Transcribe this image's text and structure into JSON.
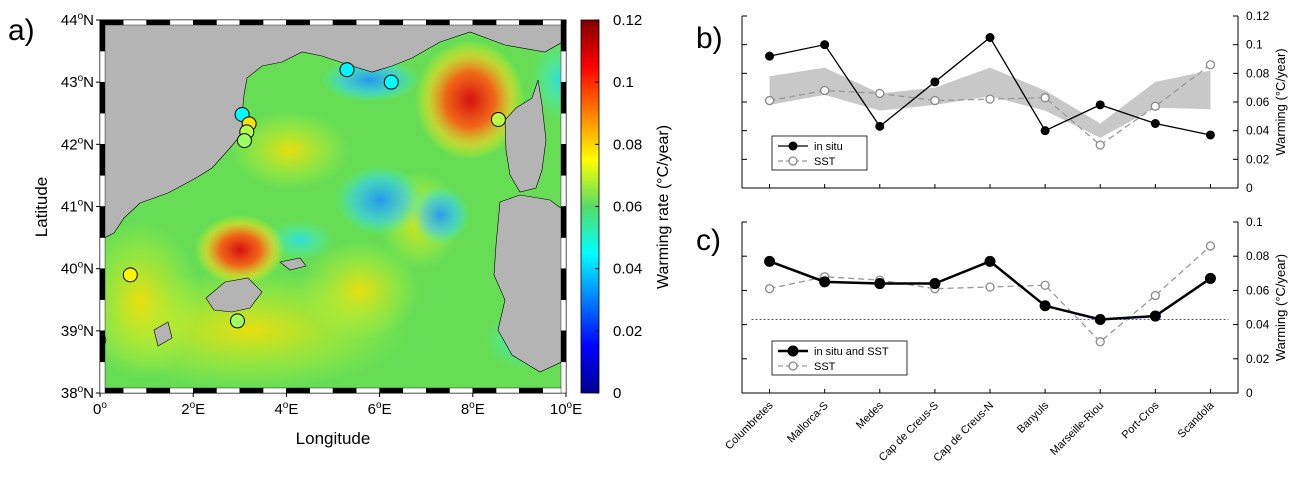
{
  "panel_labels": {
    "a": "a)",
    "b": "b)",
    "c": "c)"
  },
  "map": {
    "xlabel": "Longitude",
    "ylabel": "Latitude",
    "xticks": [
      {
        "v": 0,
        "t": "0",
        "sup": "o",
        "sfx": ""
      },
      {
        "v": 2,
        "t": "2",
        "sup": "o",
        "sfx": "E"
      },
      {
        "v": 4,
        "t": "4",
        "sup": "o",
        "sfx": "E"
      },
      {
        "v": 6,
        "t": "6",
        "sup": "o",
        "sfx": "E"
      },
      {
        "v": 8,
        "t": "8",
        "sup": "o",
        "sfx": "E"
      },
      {
        "v": 10,
        "t": "10",
        "sup": "o",
        "sfx": "E"
      }
    ],
    "yticks": [
      {
        "v": 44,
        "t": "44",
        "sup": "o",
        "sfx": "N"
      },
      {
        "v": 43,
        "t": "43",
        "sup": "o",
        "sfx": "N"
      },
      {
        "v": 42,
        "t": "42",
        "sup": "o",
        "sfx": "N"
      },
      {
        "v": 41,
        "t": "41",
        "sup": "o",
        "sfx": "N"
      },
      {
        "v": 40,
        "t": "40",
        "sup": "o",
        "sfx": "N"
      },
      {
        "v": 39,
        "t": "39",
        "sup": "o",
        "sfx": "N"
      },
      {
        "v": 38,
        "t": "38",
        "sup": "o",
        "sfx": "N"
      }
    ],
    "xlim": [
      0,
      10
    ],
    "ylim": [
      38,
      44
    ],
    "stations": [
      {
        "lon": 0.65,
        "lat": 39.9,
        "rate": 0.076
      },
      {
        "lon": 2.95,
        "lat": 39.16,
        "rate": 0.064
      },
      {
        "lon": 3.05,
        "lat": 42.48,
        "rate": 0.045
      },
      {
        "lon": 3.2,
        "lat": 42.33,
        "rate": 0.078
      },
      {
        "lon": 3.15,
        "lat": 42.2,
        "rate": 0.066
      },
      {
        "lon": 3.1,
        "lat": 42.06,
        "rate": 0.063
      },
      {
        "lon": 5.3,
        "lat": 43.2,
        "rate": 0.044
      },
      {
        "lon": 6.25,
        "lat": 43.0,
        "rate": 0.045
      },
      {
        "lon": 8.55,
        "lat": 42.4,
        "rate": 0.067
      }
    ]
  },
  "colorbar": {
    "label": "Warming rate (°C/year)",
    "ticks": [
      "0.12",
      "0.1",
      "0.08",
      "0.06",
      "0.04",
      "0.02",
      "0"
    ],
    "range": [
      0,
      0.12
    ]
  },
  "chart_data": [
    {
      "type": "line",
      "panel": "b",
      "categories": [
        "Columbretes",
        "Mallorca-S",
        "Medes",
        "Cap de Creus-S",
        "Cap de Creus-N",
        "Banyuls",
        "Marseille-Riou",
        "Port-Cros",
        "Scandola"
      ],
      "series": [
        {
          "name": "in situ",
          "values": [
            0.092,
            0.1,
            0.043,
            0.074,
            0.105,
            0.04,
            0.058,
            0.045,
            0.037
          ]
        },
        {
          "name": "SST",
          "values": [
            0.061,
            0.068,
            0.066,
            0.061,
            0.062,
            0.063,
            0.03,
            0.057,
            0.086
          ]
        }
      ],
      "band": {
        "lower": [
          0.058,
          0.065,
          0.054,
          0.058,
          0.064,
          0.054,
          0.035,
          0.056,
          0.055
        ],
        "upper": [
          0.078,
          0.084,
          0.066,
          0.07,
          0.084,
          0.068,
          0.045,
          0.074,
          0.082
        ]
      },
      "ylabel": "Warming (°C/year)",
      "yticks": [
        "0",
        "0.02",
        "0.04",
        "0.06",
        "0.08",
        "0.1",
        "0.12"
      ],
      "ylim": [
        0,
        0.12
      ],
      "legend": "bottom-left"
    },
    {
      "type": "line",
      "panel": "c",
      "categories": [
        "Columbretes",
        "Mallorca-S",
        "Medes",
        "Cap de Creus-S",
        "Cap de Creus-N",
        "Banyuls",
        "Marseille-Riou",
        "Port-Cros",
        "Scandola"
      ],
      "series": [
        {
          "name": "in situ and SST",
          "values": [
            0.077,
            0.065,
            0.064,
            0.064,
            0.077,
            0.051,
            0.043,
            0.045,
            0.067
          ]
        },
        {
          "name": "SST",
          "values": [
            0.061,
            0.068,
            0.066,
            0.061,
            0.062,
            0.063,
            0.03,
            0.057,
            0.086
          ]
        }
      ],
      "reference_line": 0.043,
      "ylabel": "Warming (°C/year)",
      "yticks": [
        "0",
        "0.02",
        "0.04",
        "0.06",
        "0.08",
        "0.1"
      ],
      "ylim": [
        0,
        0.1
      ],
      "legend": "bottom-left"
    }
  ]
}
